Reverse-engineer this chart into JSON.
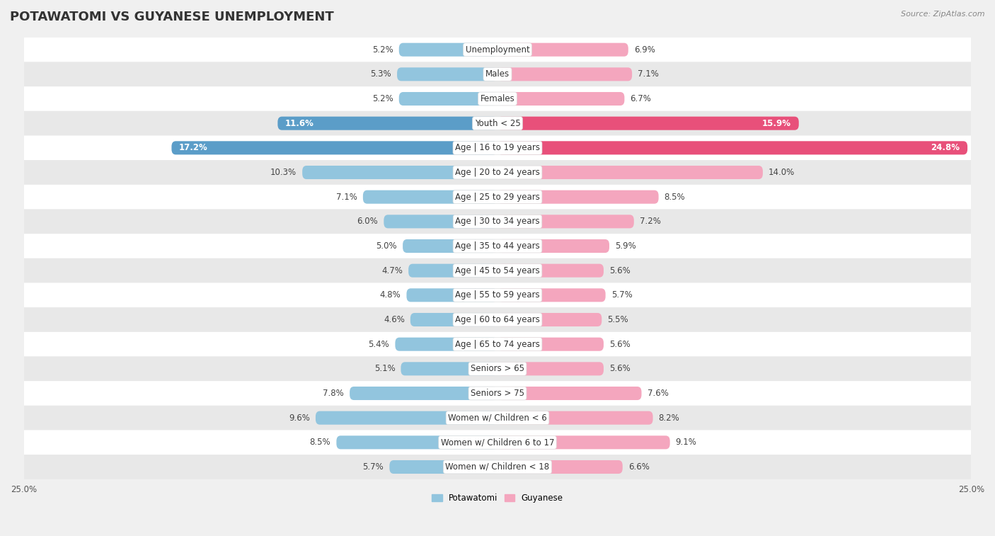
{
  "title": "POTAWATOMI VS GUYANESE UNEMPLOYMENT",
  "source_text": "Source: ZipAtlas.com",
  "categories": [
    "Unemployment",
    "Males",
    "Females",
    "Youth < 25",
    "Age | 16 to 19 years",
    "Age | 20 to 24 years",
    "Age | 25 to 29 years",
    "Age | 30 to 34 years",
    "Age | 35 to 44 years",
    "Age | 45 to 54 years",
    "Age | 55 to 59 years",
    "Age | 60 to 64 years",
    "Age | 65 to 74 years",
    "Seniors > 65",
    "Seniors > 75",
    "Women w/ Children < 6",
    "Women w/ Children 6 to 17",
    "Women w/ Children < 18"
  ],
  "potawatomi": [
    5.2,
    5.3,
    5.2,
    11.6,
    17.2,
    10.3,
    7.1,
    6.0,
    5.0,
    4.7,
    4.8,
    4.6,
    5.4,
    5.1,
    7.8,
    9.6,
    8.5,
    5.7
  ],
  "guyanese": [
    6.9,
    7.1,
    6.7,
    15.9,
    24.8,
    14.0,
    8.5,
    7.2,
    5.9,
    5.6,
    5.7,
    5.5,
    5.6,
    5.6,
    7.6,
    8.2,
    9.1,
    6.6
  ],
  "potawatomi_color": "#92c5de",
  "guyanese_color": "#f4a6be",
  "potawatomi_highlight": "#5b9dc8",
  "guyanese_highlight": "#e8507a",
  "highlight_indices": [
    3,
    4
  ],
  "max_val": 25.0,
  "bg_color": "#f0f0f0",
  "row_color_even": "#ffffff",
  "row_color_odd": "#e8e8e8",
  "title_fontsize": 13,
  "label_fontsize": 8.5,
  "tick_fontsize": 8.5,
  "value_fontsize": 8.5,
  "bar_height": 0.55
}
